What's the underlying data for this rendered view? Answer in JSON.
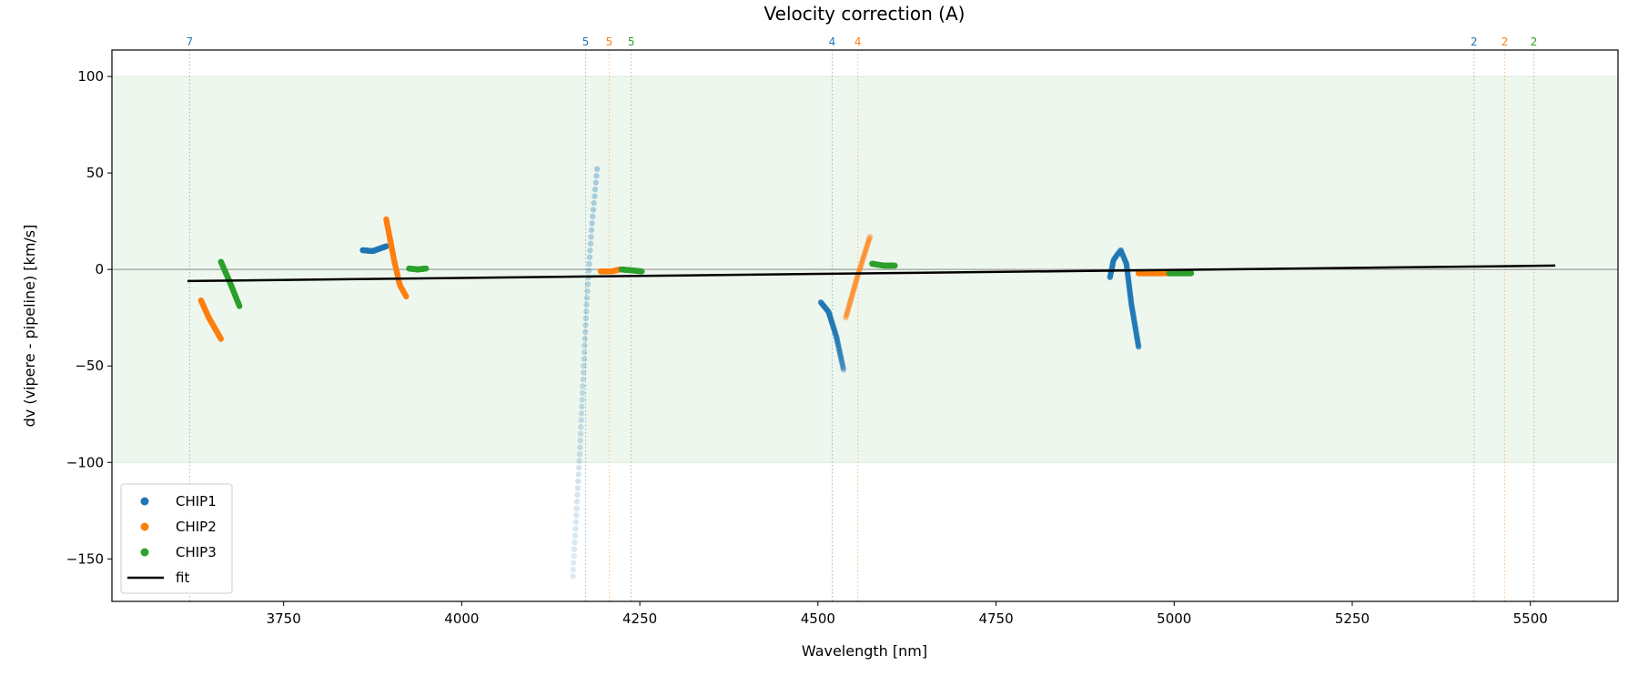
{
  "chart_data": {
    "type": "scatter",
    "title": "Velocity correction (A)",
    "xlabel": "Wavelength [nm]",
    "ylabel": "dv (vipere - pipeline) [km/s]",
    "xlim": [
      3509,
      5623
    ],
    "ylim": [
      -172,
      113.7
    ],
    "xticks": [
      3750,
      4000,
      4250,
      4500,
      4750,
      5000,
      5250,
      5500
    ],
    "yticks": [
      100,
      50,
      0,
      -50,
      -100,
      -150
    ],
    "band": [
      -100,
      100
    ],
    "band_color": "#eef7ee",
    "colors": {
      "CHIP1": "#1f77b4",
      "CHIP2": "#ff7f0e",
      "CHIP3": "#2ca02c"
    },
    "legend": {
      "placement": "lower-left",
      "entries": [
        "CHIP1",
        "CHIP2",
        "CHIP3",
        "fit"
      ]
    },
    "fit": {
      "x": [
        3615,
        5535
      ],
      "y": [
        -6,
        2
      ]
    },
    "order_markers": [
      {
        "x": 3618,
        "label": "7",
        "chip": "CHIP1"
      },
      {
        "x": 4174,
        "label": "5",
        "chip": "CHIP1"
      },
      {
        "x": 4207,
        "label": "5",
        "chip": "CHIP2"
      },
      {
        "x": 4238,
        "label": "5",
        "chip": "CHIP3"
      },
      {
        "x": 4520,
        "label": "4",
        "chip": "CHIP1"
      },
      {
        "x": 4556,
        "label": "4",
        "chip": "CHIP2"
      },
      {
        "x": 5421,
        "label": "2",
        "chip": "CHIP1"
      },
      {
        "x": 5464,
        "label": "2",
        "chip": "CHIP2"
      },
      {
        "x": 5505,
        "label": "2",
        "chip": "CHIP3"
      }
    ],
    "series": [
      {
        "chip": "CHIP2",
        "alpha": [
          1,
          1
        ],
        "points": [
          [
            3634,
            -16
          ],
          [
            3645,
            -25
          ],
          [
            3662,
            -36
          ]
        ]
      },
      {
        "chip": "CHIP3",
        "alpha": [
          1,
          1
        ],
        "points": [
          [
            3662,
            4
          ],
          [
            3675,
            -7
          ],
          [
            3688,
            -19
          ]
        ]
      },
      {
        "chip": "CHIP1",
        "alpha": [
          1,
          1
        ],
        "points": [
          [
            3861,
            10
          ],
          [
            3875,
            9.5
          ],
          [
            3894,
            12
          ]
        ]
      },
      {
        "chip": "CHIP2",
        "alpha": [
          1,
          1
        ],
        "points": [
          [
            3894,
            26
          ],
          [
            3905,
            5
          ],
          [
            3913,
            -8
          ],
          [
            3922,
            -14
          ]
        ]
      },
      {
        "chip": "CHIP3",
        "alpha": [
          1,
          1
        ],
        "points": [
          [
            3926,
            0.5
          ],
          [
            3938,
            0
          ],
          [
            3950,
            0.5
          ]
        ]
      },
      {
        "chip": "CHIP1",
        "alpha": [
          0.15,
          0.35
        ],
        "points": [
          [
            4156,
            -159
          ],
          [
            4165,
            -100
          ],
          [
            4175,
            -20
          ],
          [
            4182,
            20
          ],
          [
            4190,
            52
          ]
        ]
      },
      {
        "chip": "CHIP2",
        "alpha": [
          0.9,
          0.9
        ],
        "points": [
          [
            4195,
            -1
          ],
          [
            4210,
            -1
          ],
          [
            4222,
            0
          ]
        ]
      },
      {
        "chip": "CHIP3",
        "alpha": [
          0.9,
          0.7
        ],
        "points": [
          [
            4224,
            0
          ],
          [
            4240,
            -0.5
          ],
          [
            4253,
            -1
          ]
        ]
      },
      {
        "chip": "CHIP1",
        "alpha": [
          0.75,
          0.3
        ],
        "points": [
          [
            4504,
            -17
          ],
          [
            4515,
            -22
          ],
          [
            4526,
            -35
          ],
          [
            4536,
            -52
          ]
        ]
      },
      {
        "chip": "CHIP2",
        "alpha": [
          0.35,
          0.35
        ],
        "points": [
          [
            4539,
            -25
          ],
          [
            4556,
            -3
          ],
          [
            4573,
            17
          ]
        ]
      },
      {
        "chip": "CHIP3",
        "alpha": [
          1,
          1
        ],
        "points": [
          [
            4576,
            3
          ],
          [
            4592,
            2
          ],
          [
            4608,
            2
          ]
        ]
      },
      {
        "chip": "CHIP1",
        "alpha": [
          0.9,
          0.8
        ],
        "points": [
          [
            4910,
            -4
          ],
          [
            4915,
            5
          ],
          [
            4925,
            10
          ],
          [
            4933,
            3
          ],
          [
            4940,
            -18
          ],
          [
            4950,
            -40
          ]
        ]
      },
      {
        "chip": "CHIP2",
        "alpha": [
          1,
          1
        ],
        "points": [
          [
            4950,
            -2
          ],
          [
            4970,
            -2
          ],
          [
            4993,
            -2
          ]
        ]
      },
      {
        "chip": "CHIP3",
        "alpha": [
          1,
          1
        ],
        "points": [
          [
            4993,
            -2
          ],
          [
            5008,
            -2
          ],
          [
            5024,
            -2
          ]
        ]
      }
    ]
  }
}
